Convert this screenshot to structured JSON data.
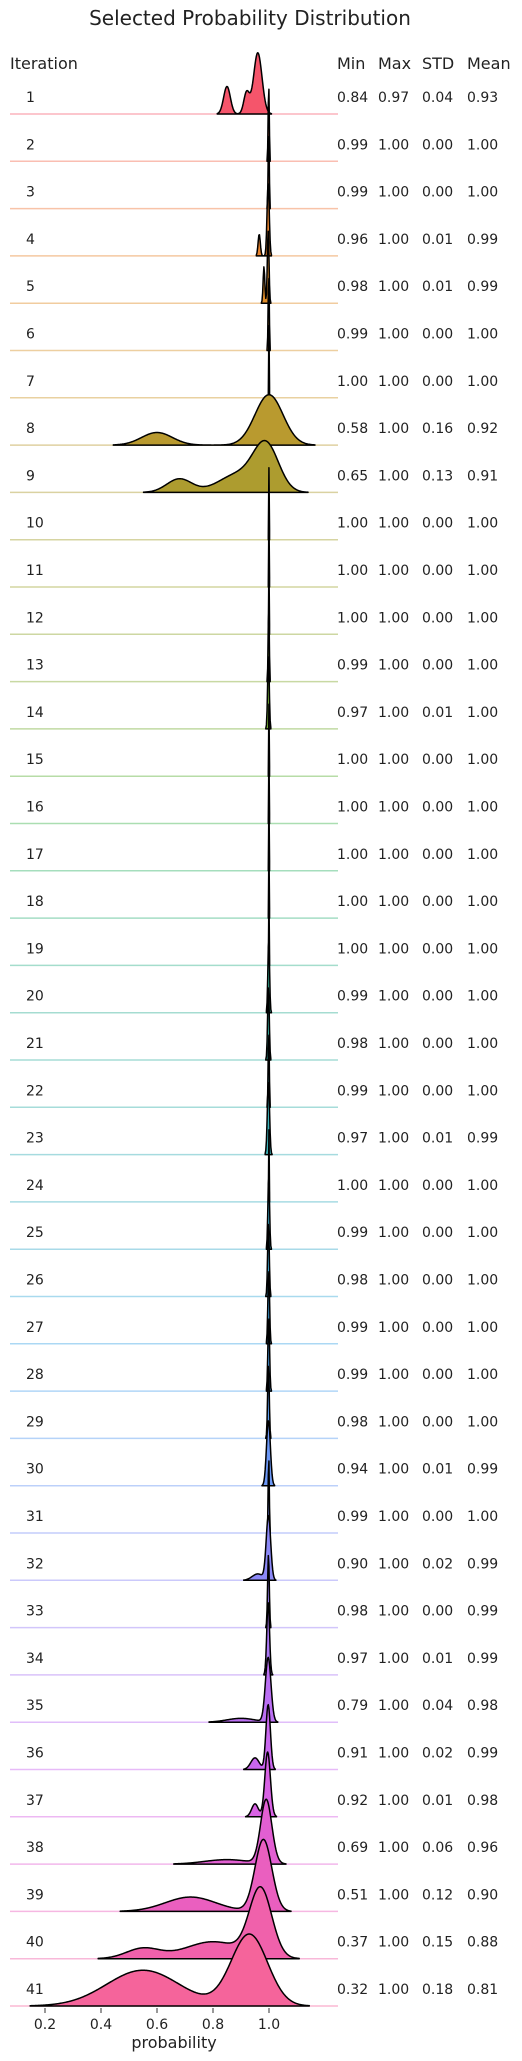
{
  "chart_data": {
    "type": "ridgeline",
    "title": "Selected Probability Distribution",
    "row_header": "Iteration",
    "stat_headers": [
      "Min",
      "Max",
      "STD",
      "Mean"
    ],
    "xlabel": "probability",
    "xticks": [
      "0.2",
      "0.4",
      "0.6",
      "0.8",
      "1.0"
    ],
    "xlim": [
      0.12,
      1.2
    ],
    "rows": [
      {
        "label": "1",
        "stats": [
          "0.84",
          "0.97",
          "0.04",
          "0.93"
        ],
        "color": "#f5556b",
        "modes": [
          [
            0.96,
            0.015,
            1.0
          ],
          [
            0.85,
            0.012,
            0.45
          ],
          [
            0.92,
            0.01,
            0.35
          ]
        ],
        "peak": 0.85
      },
      {
        "label": "2",
        "stats": [
          "0.99",
          "1.00",
          "0.00",
          "1.00"
        ],
        "color": "#f46e55",
        "modes": [
          [
            0.999,
            0.002,
            1.0
          ]
        ],
        "peak": 1.0
      },
      {
        "label": "3",
        "stats": [
          "0.99",
          "1.00",
          "0.00",
          "1.00"
        ],
        "color": "#ef7a3e",
        "modes": [
          [
            0.999,
            0.002,
            1.0
          ]
        ],
        "peak": 1.0
      },
      {
        "label": "4",
        "stats": [
          "0.96",
          "1.00",
          "0.01",
          "0.99"
        ],
        "color": "#e9842e",
        "modes": [
          [
            0.997,
            0.004,
            1.0
          ],
          [
            0.965,
            0.004,
            0.3
          ]
        ],
        "peak": 1.0
      },
      {
        "label": "5",
        "stats": [
          "0.98",
          "1.00",
          "0.01",
          "0.99"
        ],
        "color": "#e08d2a",
        "modes": [
          [
            0.997,
            0.003,
            1.0
          ],
          [
            0.982,
            0.003,
            0.5
          ]
        ],
        "peak": 1.0
      },
      {
        "label": "6",
        "stats": [
          "0.99",
          "1.00",
          "0.00",
          "1.00"
        ],
        "color": "#d7952c",
        "modes": [
          [
            0.999,
            0.002,
            1.0
          ]
        ],
        "peak": 1.0
      },
      {
        "label": "7",
        "stats": [
          "1.00",
          "1.00",
          "0.00",
          "1.00"
        ],
        "color": "#cf992d",
        "modes": [
          [
            1.0,
            0.001,
            1.0
          ]
        ],
        "peak": 1.0
      },
      {
        "label": "8",
        "stats": [
          "0.58",
          "1.00",
          "0.16",
          "0.92"
        ],
        "color": "#b99a2f",
        "modes": [
          [
            1.0,
            0.05,
            1.0
          ],
          [
            0.6,
            0.055,
            0.25
          ]
        ],
        "peak": 0.7
      },
      {
        "label": "9",
        "stats": [
          "0.65",
          "1.00",
          "0.13",
          "0.91"
        ],
        "color": "#ad9c2f",
        "modes": [
          [
            0.99,
            0.045,
            1.0
          ],
          [
            0.68,
            0.045,
            0.3
          ],
          [
            0.89,
            0.07,
            0.4
          ]
        ],
        "peak": 0.72
      },
      {
        "label": "10",
        "stats": [
          "1.00",
          "1.00",
          "0.00",
          "1.00"
        ],
        "color": "#a59f2f",
        "modes": [
          [
            1.0,
            0.001,
            1.0
          ]
        ],
        "peak": 1.0
      },
      {
        "label": "11",
        "stats": [
          "1.00",
          "1.00",
          "0.00",
          "1.00"
        ],
        "color": "#9ba32f",
        "modes": [
          [
            1.0,
            0.001,
            1.0
          ]
        ],
        "peak": 1.0
      },
      {
        "label": "12",
        "stats": [
          "1.00",
          "1.00",
          "0.00",
          "1.00"
        ],
        "color": "#90a731",
        "modes": [
          [
            1.0,
            0.001,
            1.0
          ]
        ],
        "peak": 1.0
      },
      {
        "label": "13",
        "stats": [
          "0.99",
          "1.00",
          "0.00",
          "1.00"
        ],
        "color": "#84aa32",
        "modes": [
          [
            0.999,
            0.002,
            1.0
          ]
        ],
        "peak": 1.0
      },
      {
        "label": "14",
        "stats": [
          "0.97",
          "1.00",
          "0.01",
          "1.00"
        ],
        "color": "#74ae34",
        "modes": [
          [
            0.998,
            0.003,
            1.0
          ]
        ],
        "peak": 1.0
      },
      {
        "label": "15",
        "stats": [
          "1.00",
          "1.00",
          "0.00",
          "1.00"
        ],
        "color": "#5fb23b",
        "modes": [
          [
            1.0,
            0.001,
            1.0
          ]
        ],
        "peak": 1.0
      },
      {
        "label": "16",
        "stats": [
          "1.00",
          "1.00",
          "0.00",
          "1.00"
        ],
        "color": "#44b553",
        "modes": [
          [
            1.0,
            0.001,
            1.0
          ]
        ],
        "peak": 1.0
      },
      {
        "label": "17",
        "stats": [
          "1.00",
          "1.00",
          "0.00",
          "1.00"
        ],
        "color": "#37b56d",
        "modes": [
          [
            1.0,
            0.001,
            1.0
          ]
        ],
        "peak": 1.0
      },
      {
        "label": "18",
        "stats": [
          "1.00",
          "1.00",
          "0.00",
          "1.00"
        ],
        "color": "#35b47f",
        "modes": [
          [
            1.0,
            0.001,
            1.0
          ]
        ],
        "peak": 1.0
      },
      {
        "label": "19",
        "stats": [
          "1.00",
          "1.00",
          "0.00",
          "1.00"
        ],
        "color": "#36b38d",
        "modes": [
          [
            1.0,
            0.001,
            1.0
          ]
        ],
        "peak": 1.0
      },
      {
        "label": "20",
        "stats": [
          "0.99",
          "1.00",
          "0.00",
          "1.00"
        ],
        "color": "#37b298",
        "modes": [
          [
            0.999,
            0.003,
            1.0
          ]
        ],
        "peak": 1.0
      },
      {
        "label": "21",
        "stats": [
          "0.98",
          "1.00",
          "0.00",
          "1.00"
        ],
        "color": "#38b2a3",
        "modes": [
          [
            0.998,
            0.003,
            1.0
          ]
        ],
        "peak": 1.0
      },
      {
        "label": "22",
        "stats": [
          "0.99",
          "1.00",
          "0.00",
          "1.00"
        ],
        "color": "#39b1ad",
        "modes": [
          [
            0.999,
            0.002,
            1.0
          ]
        ],
        "peak": 1.0
      },
      {
        "label": "23",
        "stats": [
          "0.97",
          "1.00",
          "0.01",
          "0.99"
        ],
        "color": "#3ab0b7",
        "modes": [
          [
            0.998,
            0.004,
            1.0
          ]
        ],
        "peak": 1.0
      },
      {
        "label": "24",
        "stats": [
          "1.00",
          "1.00",
          "0.00",
          "1.00"
        ],
        "color": "#3cafc1",
        "modes": [
          [
            1.0,
            0.001,
            1.0
          ]
        ],
        "peak": 1.0
      },
      {
        "label": "25",
        "stats": [
          "0.99",
          "1.00",
          "0.00",
          "1.00"
        ],
        "color": "#3eaecc",
        "modes": [
          [
            0.999,
            0.003,
            1.0
          ]
        ],
        "peak": 1.0
      },
      {
        "label": "26",
        "stats": [
          "0.98",
          "1.00",
          "0.00",
          "1.00"
        ],
        "color": "#40acd9",
        "modes": [
          [
            0.998,
            0.003,
            1.0
          ]
        ],
        "peak": 1.0
      },
      {
        "label": "27",
        "stats": [
          "0.99",
          "1.00",
          "0.00",
          "1.00"
        ],
        "color": "#45a9e6",
        "modes": [
          [
            0.999,
            0.003,
            1.0
          ]
        ],
        "peak": 1.0
      },
      {
        "label": "28",
        "stats": [
          "0.99",
          "1.00",
          "0.00",
          "1.00"
        ],
        "color": "#4fa4ee",
        "modes": [
          [
            0.999,
            0.003,
            1.0
          ]
        ],
        "peak": 1.0
      },
      {
        "label": "29",
        "stats": [
          "0.98",
          "1.00",
          "0.00",
          "1.00"
        ],
        "color": "#5b9ef2",
        "modes": [
          [
            0.998,
            0.003,
            1.0
          ]
        ],
        "peak": 1.0
      },
      {
        "label": "30",
        "stats": [
          "0.94",
          "1.00",
          "0.01",
          "0.99"
        ],
        "color": "#6b97f5",
        "modes": [
          [
            0.998,
            0.007,
            1.0
          ]
        ],
        "peak": 0.9
      },
      {
        "label": "31",
        "stats": [
          "0.99",
          "1.00",
          "0.00",
          "1.00"
        ],
        "color": "#7b8ff6",
        "modes": [
          [
            0.999,
            0.002,
            1.0
          ]
        ],
        "peak": 1.0
      },
      {
        "label": "32",
        "stats": [
          "0.90",
          "1.00",
          "0.02",
          "0.99"
        ],
        "color": "#8b88f6",
        "modes": [
          [
            0.998,
            0.008,
            1.0
          ],
          [
            0.96,
            0.02,
            0.1
          ]
        ],
        "peak": 0.9
      },
      {
        "label": "33",
        "stats": [
          "0.98",
          "1.00",
          "0.00",
          "0.99"
        ],
        "color": "#9b80f6",
        "modes": [
          [
            0.998,
            0.003,
            1.0
          ]
        ],
        "peak": 1.0
      },
      {
        "label": "34",
        "stats": [
          "0.97",
          "1.00",
          "0.01",
          "0.99"
        ],
        "color": "#ab78f5",
        "modes": [
          [
            0.997,
            0.005,
            1.0
          ]
        ],
        "peak": 1.0
      },
      {
        "label": "35",
        "stats": [
          "0.79",
          "1.00",
          "0.04",
          "0.98"
        ],
        "color": "#bb6ff3",
        "modes": [
          [
            0.997,
            0.01,
            1.0
          ],
          [
            0.9,
            0.05,
            0.06
          ]
        ],
        "peak": 0.9
      },
      {
        "label": "36",
        "stats": [
          "0.91",
          "1.00",
          "0.02",
          "0.99"
        ],
        "color": "#ca67ef",
        "modes": [
          [
            0.997,
            0.008,
            1.0
          ],
          [
            0.95,
            0.015,
            0.18
          ]
        ],
        "peak": 0.9
      },
      {
        "label": "37",
        "stats": [
          "0.92",
          "1.00",
          "0.01",
          "0.98"
        ],
        "color": "#d862e4",
        "modes": [
          [
            0.995,
            0.01,
            1.0
          ],
          [
            0.95,
            0.012,
            0.2
          ]
        ],
        "peak": 0.9
      },
      {
        "label": "38",
        "stats": [
          "0.69",
          "1.00",
          "0.06",
          "0.96"
        ],
        "color": "#e25fd2",
        "modes": [
          [
            0.99,
            0.02,
            1.0
          ],
          [
            0.85,
            0.08,
            0.07
          ]
        ],
        "peak": 0.9
      },
      {
        "label": "39",
        "stats": [
          "0.51",
          "1.00",
          "0.12",
          "0.90"
        ],
        "color": "#ea5fbf",
        "modes": [
          [
            0.98,
            0.03,
            1.0
          ],
          [
            0.72,
            0.09,
            0.2
          ]
        ],
        "peak": 1.0
      },
      {
        "label": "40",
        "stats": [
          "0.37",
          "1.00",
          "0.15",
          "0.88"
        ],
        "color": "#f061ab",
        "modes": [
          [
            0.97,
            0.04,
            1.0
          ],
          [
            0.55,
            0.06,
            0.15
          ],
          [
            0.8,
            0.1,
            0.25
          ]
        ],
        "peak": 1.0
      },
      {
        "label": "41",
        "stats": [
          "0.32",
          "1.00",
          "0.18",
          "0.81"
        ],
        "color": "#f5649b",
        "modes": [
          [
            0.93,
            0.065,
            1.0
          ],
          [
            0.55,
            0.13,
            0.5
          ]
        ],
        "peak": 1.0
      }
    ]
  }
}
